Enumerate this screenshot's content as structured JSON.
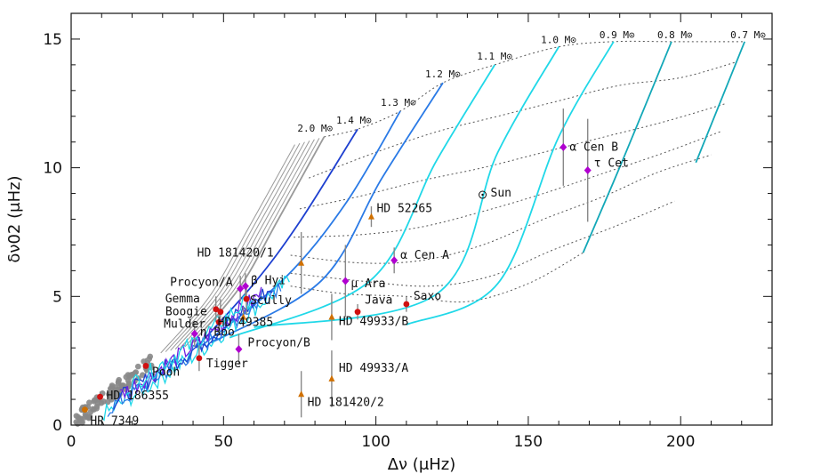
{
  "chart_data": {
    "type": "scatter",
    "title": "",
    "xlabel": "Δν (μHz)",
    "ylabel": "δν02 (μHz)",
    "xlim": [
      0,
      230
    ],
    "ylim": [
      0,
      16
    ],
    "xticks": [
      0,
      50,
      100,
      150,
      200
    ],
    "yticks": [
      0,
      5,
      10,
      15
    ],
    "x_tick_labels": [
      "0",
      "50",
      "100",
      "150",
      "200"
    ],
    "y_tick_labels": [
      "0",
      "5",
      "10",
      "15"
    ],
    "colors": {
      "red_giant": "#d01010",
      "sun_like": "#b000d0",
      "f_star": "#d07000",
      "errorbar": "#888888",
      "track_gray": "#9a9a9a",
      "track_blue_dark": "#1e40d0",
      "track_blue_mid": "#2a7ae6",
      "track_cyan": "#20d8e8",
      "track_teal": "#13a8b8",
      "track_purple": "#7020e0",
      "isochrone": "#555555",
      "giant_cloud": "#888888"
    },
    "mass_tracks": [
      {
        "label": "2.0 M⊙",
        "color": "track_gray",
        "points": [
          [
            39,
            3.1
          ],
          [
            55,
            5.3
          ],
          [
            68,
            8.0
          ],
          [
            83,
            11.2
          ]
        ]
      },
      {
        "label": "1.4 M⊙",
        "color": "track_blue_dark",
        "points": [
          [
            41,
            3.0
          ],
          [
            60,
            5.5
          ],
          [
            75,
            7.9
          ],
          [
            94,
            11.5
          ]
        ]
      },
      {
        "label": "1.3 M⊙",
        "color": "track_blue_mid",
        "points": [
          [
            43,
            3.1
          ],
          [
            70,
            5.7
          ],
          [
            90,
            8.6
          ],
          [
            108,
            12.2
          ]
        ]
      },
      {
        "label": "1.2 M⊙",
        "color": "track_blue_mid",
        "points": [
          [
            46,
            3.2
          ],
          [
            82,
            5.6
          ],
          [
            102,
            9.6
          ],
          [
            122,
            13.3
          ]
        ]
      },
      {
        "label": "1.1 M⊙",
        "color": "track_cyan",
        "points": [
          [
            52,
            3.4
          ],
          [
            98,
            5.6
          ],
          [
            120,
            10.3
          ],
          [
            139,
            14.0
          ]
        ]
      },
      {
        "label": "1.0 M⊙",
        "color": "track_cyan",
        "points": [
          [
            60,
            3.8
          ],
          [
            120,
            5.1
          ],
          [
            140,
            10.6
          ],
          [
            160,
            14.7
          ]
        ]
      },
      {
        "label": "0.9 M⊙",
        "color": "track_cyan",
        "points": [
          [
            110,
            3.9
          ],
          [
            140,
            5.5
          ],
          [
            160,
            11.2
          ],
          [
            178,
            14.9
          ]
        ]
      },
      {
        "label": "0.8 M⊙",
        "color": "track_teal",
        "points": [
          [
            168,
            6.7
          ],
          [
            181,
            10.3
          ],
          [
            197,
            14.9
          ]
        ]
      },
      {
        "label": "0.7 M⊙",
        "color": "track_teal",
        "points": [
          [
            205,
            10.2
          ],
          [
            221,
            14.9
          ]
        ]
      }
    ],
    "stars": [
      {
        "name": "α Cen B",
        "x": 161.5,
        "y": 10.8,
        "err": 1.5,
        "marker": "diamond",
        "color": "sun_like"
      },
      {
        "name": "τ Cet",
        "x": 169.5,
        "y": 9.9,
        "err": 2.0,
        "marker": "diamond",
        "color": "sun_like"
      },
      {
        "name": "Sun",
        "x": 135.0,
        "y": 8.95,
        "err": 0,
        "marker": "sun",
        "color": "track_gray"
      },
      {
        "name": "HD 52265",
        "x": 98.5,
        "y": 8.1,
        "err": 0.4,
        "marker": "triangle",
        "color": "f_star"
      },
      {
        "name": "α Cen A",
        "x": 106.0,
        "y": 6.4,
        "err": 0.5,
        "marker": "diamond",
        "color": "sun_like"
      },
      {
        "name": "HD 181420/1",
        "x": 75.5,
        "y": 6.3,
        "err": 1.2,
        "marker": "triangle",
        "color": "f_star"
      },
      {
        "name": "μ Ara",
        "x": 90.0,
        "y": 5.6,
        "err": 1.4,
        "marker": "diamond",
        "color": "sun_like"
      },
      {
        "name": "β Hyi",
        "x": 57.2,
        "y": 5.4,
        "err": 0.5,
        "marker": "diamond",
        "color": "sun_like"
      },
      {
        "name": "Procyon/A",
        "x": 55.5,
        "y": 5.3,
        "err": 0.5,
        "marker": "diamond",
        "color": "sun_like"
      },
      {
        "name": "Scully",
        "x": 57.5,
        "y": 4.9,
        "err": 0.6,
        "marker": "circle",
        "color": "red_giant"
      },
      {
        "name": "Saxo",
        "x": 110.0,
        "y": 4.7,
        "err": 0.3,
        "marker": "circle",
        "color": "red_giant"
      },
      {
        "name": "Gemma",
        "x": 47.5,
        "y": 4.5,
        "err": 0.5,
        "marker": "circle",
        "color": "red_giant"
      },
      {
        "name": "Java",
        "x": 94.0,
        "y": 4.4,
        "err": 0.3,
        "marker": "circle",
        "color": "red_giant"
      },
      {
        "name": "Boogie",
        "x": 49.0,
        "y": 4.4,
        "err": 0.5,
        "marker": "circle",
        "color": "red_giant"
      },
      {
        "name": "Mulder",
        "x": 48.5,
        "y": 4.0,
        "err": 0.5,
        "marker": "circle",
        "color": "red_giant"
      },
      {
        "name": "HD 49385",
        "x": 56.5,
        "y": 4.2,
        "err": 0.4,
        "marker": "triangle",
        "color": "f_star"
      },
      {
        "name": "HD 49933/B",
        "x": 85.5,
        "y": 4.2,
        "err": 0.9,
        "marker": "triangle",
        "color": "f_star"
      },
      {
        "name": "η Boo",
        "x": 40.5,
        "y": 3.55,
        "err": 0.5,
        "marker": "diamond",
        "color": "sun_like"
      },
      {
        "name": "Procyon/B",
        "x": 55.0,
        "y": 2.95,
        "err": 0.6,
        "marker": "diamond",
        "color": "sun_like"
      },
      {
        "name": "Tigger",
        "x": 42.0,
        "y": 2.6,
        "err": 0.5,
        "marker": "circle",
        "color": "red_giant"
      },
      {
        "name": "Pooh",
        "x": 24.5,
        "y": 2.3,
        "err": 0.3,
        "marker": "circle",
        "color": "red_giant"
      },
      {
        "name": "HD 49933/A",
        "x": 85.5,
        "y": 1.8,
        "err": 1.1,
        "marker": "triangle",
        "color": "f_star"
      },
      {
        "name": "HD 181420/2",
        "x": 75.5,
        "y": 1.2,
        "err": 0.9,
        "marker": "triangle",
        "color": "f_star"
      },
      {
        "name": "HD 186355",
        "x": 9.5,
        "y": 1.1,
        "err": 0.2,
        "marker": "circle",
        "color": "red_giant"
      },
      {
        "name": "HR 7349",
        "x": 4.5,
        "y": 0.6,
        "err": 0.2,
        "marker": "circle",
        "color": "f_star"
      }
    ]
  }
}
